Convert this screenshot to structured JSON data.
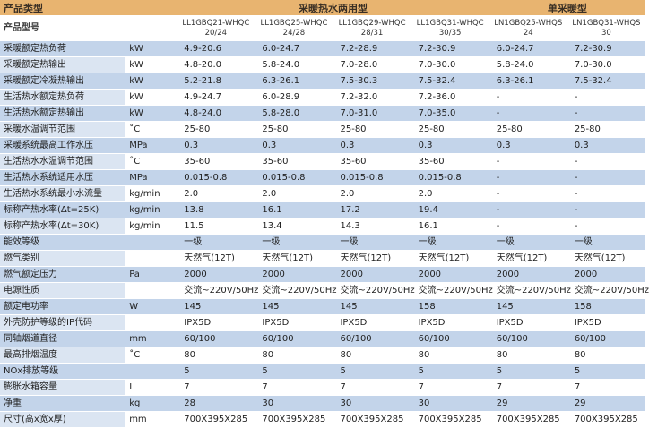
{
  "header": {
    "product_category": "产品类型",
    "group_dual": "采暖热水两用型",
    "group_single": "单采暖型"
  },
  "model_row": {
    "label": "产品型号",
    "models": [
      "LL1GBQ21-WHQC 20/24",
      "LL1GBQ25-WHQC 24/28",
      "LL1GBQ29-WHQC 28/31",
      "LL1GBQ31-WHQC 30/35",
      "LN1GBQ25-WHQS 24",
      "LN1GBQ31-WHQS 30"
    ]
  },
  "rows": [
    {
      "label": "采暖额定热负荷",
      "unit": "kW",
      "values": [
        "4.9-20.6",
        "6.0-24.7",
        "7.2-28.9",
        "7.2-30.9",
        "6.0-24.7",
        "7.2-30.9"
      ]
    },
    {
      "label": "采暖额定热输出",
      "unit": "kW",
      "values": [
        "4.8-20.0",
        "5.8-24.0",
        "7.0-28.0",
        "7.0-30.0",
        "5.8-24.0",
        "7.0-30.0"
      ]
    },
    {
      "label": "采暖额定冷凝热输出",
      "unit": "kW",
      "values": [
        "5.2-21.8",
        "6.3-26.1",
        "7.5-30.3",
        "7.5-32.4",
        "6.3-26.1",
        "7.5-32.4"
      ]
    },
    {
      "label": "生活热水额定热负荷",
      "unit": "kW",
      "values": [
        "4.9-24.7",
        "6.0-28.9",
        "7.2-32.0",
        "7.2-36.0",
        "-",
        "-"
      ]
    },
    {
      "label": "生活热水额定热输出",
      "unit": "kW",
      "values": [
        "4.8-24.0",
        "5.8-28.0",
        "7.0-31.0",
        "7.0-35.0",
        "-",
        "-"
      ]
    },
    {
      "label": "采暖水温调节范围",
      "unit": "˚C",
      "values": [
        "25-80",
        "25-80",
        "25-80",
        "25-80",
        "25-80",
        "25-80"
      ]
    },
    {
      "label": "采暖系统最高工作水压",
      "unit": "MPa",
      "values": [
        "0.3",
        "0.3",
        "0.3",
        "0.3",
        "0.3",
        "0.3"
      ]
    },
    {
      "label": "生活热水水温调节范围",
      "unit": "˚C",
      "values": [
        "35-60",
        "35-60",
        "35-60",
        "35-60",
        "-",
        "-"
      ]
    },
    {
      "label": "生活热水系统适用水压",
      "unit": "MPa",
      "values": [
        "0.015-0.8",
        "0.015-0.8",
        "0.015-0.8",
        "0.015-0.8",
        "-",
        "-"
      ]
    },
    {
      "label": "生活热水系统最小水流量",
      "unit": "kg/min",
      "values": [
        "2.0",
        "2.0",
        "2.0",
        "2.0",
        "-",
        "-"
      ]
    },
    {
      "label": "标称产热水率(Δt=25K)",
      "unit": "kg/min",
      "values": [
        "13.8",
        "16.1",
        "17.2",
        "19.4",
        "-",
        "-"
      ]
    },
    {
      "label": "标称产热水率(Δt=30K)",
      "unit": "kg/min",
      "values": [
        "11.5",
        "13.4",
        "14.3",
        "16.1",
        "-",
        "-"
      ]
    },
    {
      "label": "能效等级",
      "unit": "",
      "values": [
        "一级",
        "一级",
        "一级",
        "一级",
        "一级",
        "一级"
      ]
    },
    {
      "label": "燃气类别",
      "unit": "",
      "values": [
        "天然气(12T)",
        "天然气(12T)",
        "天然气(12T)",
        "天然气(12T)",
        "天然气(12T)",
        "天然气(12T)"
      ]
    },
    {
      "label": "燃气额定压力",
      "unit": "Pa",
      "values": [
        "2000",
        "2000",
        "2000",
        "2000",
        "2000",
        "2000"
      ]
    },
    {
      "label": "电源性质",
      "unit": "",
      "values": [
        "交流~220V/50Hz",
        "交流~220V/50Hz",
        "交流~220V/50Hz",
        "交流~220V/50Hz",
        "交流~220V/50Hz",
        "交流~220V/50Hz"
      ]
    },
    {
      "label": "额定电功率",
      "unit": "W",
      "values": [
        "145",
        "145",
        "145",
        "158",
        "145",
        "158"
      ]
    },
    {
      "label": "外壳防护等级的IP代码",
      "unit": "",
      "values": [
        "IPX5D",
        "IPX5D",
        "IPX5D",
        "IPX5D",
        "IPX5D",
        "IPX5D"
      ]
    },
    {
      "label": "同轴烟道直径",
      "unit": "mm",
      "values": [
        "60/100",
        "60/100",
        "60/100",
        "60/100",
        "60/100",
        "60/100"
      ]
    },
    {
      "label": "最高排烟温度",
      "unit": "˚C",
      "values": [
        "80",
        "80",
        "80",
        "80",
        "80",
        "80"
      ]
    },
    {
      "label": "NOx排放等级",
      "unit": "",
      "values": [
        "5",
        "5",
        "5",
        "5",
        "5",
        "5"
      ]
    },
    {
      "label": "膨胀水箱容量",
      "unit": "L",
      "values": [
        "7",
        "7",
        "7",
        "7",
        "7",
        "7"
      ]
    },
    {
      "label": "净重",
      "unit": "kg",
      "values": [
        "28",
        "30",
        "30",
        "30",
        "29",
        "29"
      ]
    },
    {
      "label": "尺寸(高x宽x厚)",
      "unit": "mm",
      "values": [
        "700X395X285",
        "700X395X285",
        "700X395X285",
        "700X395X285",
        "700X395X285",
        "700X395X285"
      ]
    }
  ],
  "colors": {
    "header": "#e8b470",
    "row_shade": "#c3d4ea",
    "label_light": "#dbe5f2"
  }
}
